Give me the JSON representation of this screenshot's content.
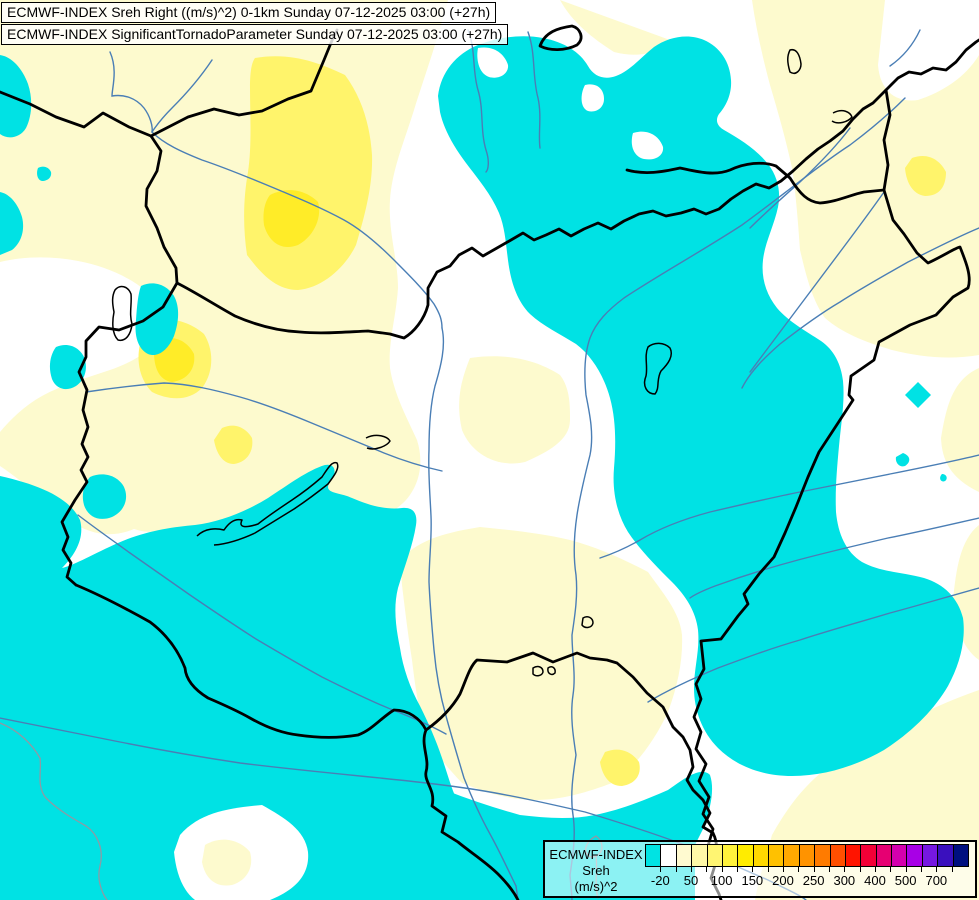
{
  "header": {
    "title_line1": "ECMWF-INDEX Sreh Right ((m/s)^2) 0-1km Sunday 07-12-2025 03:00 (+27h)",
    "title_line2": "ECMWF-INDEX SignificantTornadoParameter Sunday 07-12-2025 03:00 (+27h)"
  },
  "legend": {
    "product": "ECMWF-INDEX",
    "parameter": "Sreh",
    "units": "(m/s)^2",
    "tick_labels": [
      "-20",
      "50",
      "100",
      "150",
      "200",
      "250",
      "300",
      "400",
      "500",
      "700"
    ],
    "segment_colors": [
      "#00E3E3",
      "#FFFFFF",
      "#FFFAD0",
      "#FFF8A8",
      "#FFF572",
      "#FFF23C",
      "#FFEC00",
      "#FFD800",
      "#FFC100",
      "#FFA900",
      "#FF9300",
      "#FF7B00",
      "#FF4F00",
      "#FF1400",
      "#F30036",
      "#E60072",
      "#D400AE",
      "#A800E6",
      "#7618E0",
      "#3A10BE",
      "#001080"
    ]
  },
  "map": {
    "colors": {
      "white": "#FFFFFF",
      "cyan": "#00E2E4",
      "pale": "#FDFACE",
      "yellow": "#FFF46B",
      "gold": "#FFEC28",
      "river": "#4A7EB5",
      "admin": "#8E9AA4",
      "border": "#000000"
    }
  }
}
